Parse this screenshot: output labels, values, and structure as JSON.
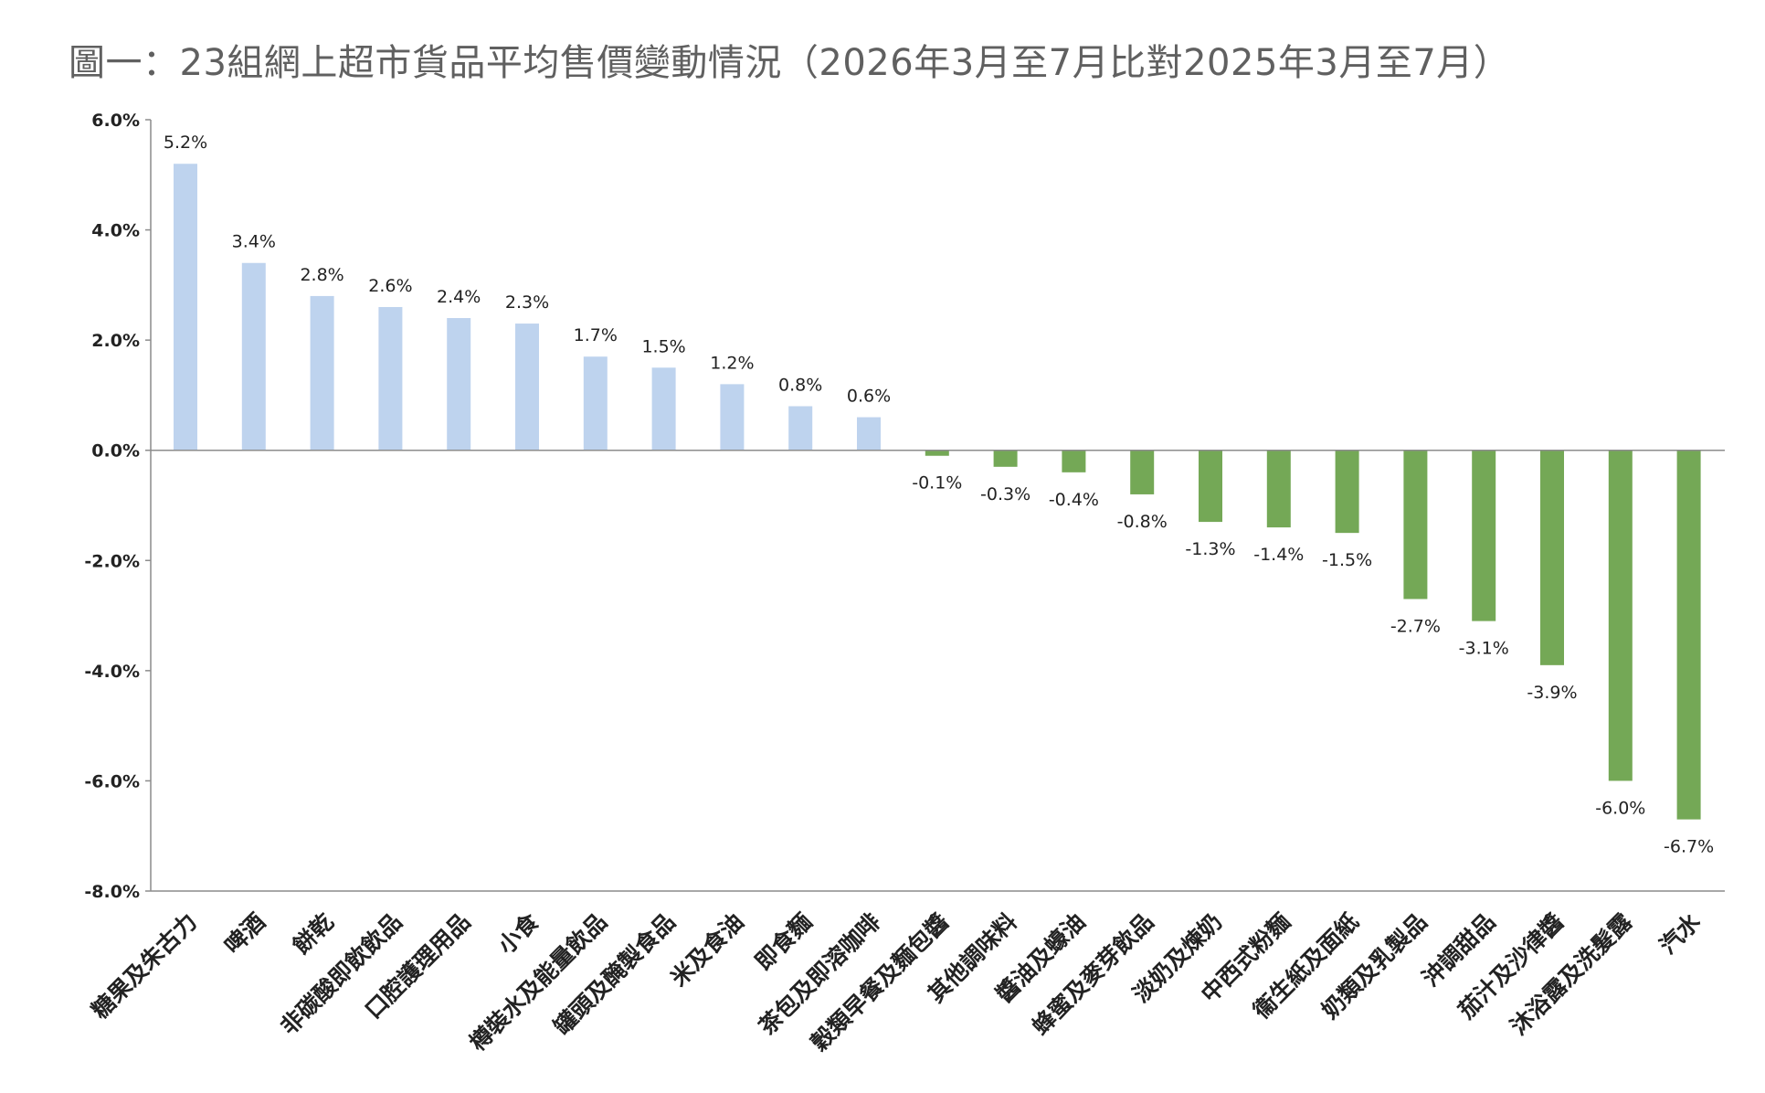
{
  "title": "圖一：23組網上超市貨品平均售價變動情況（2026年3月至7月比對2025年3月至7月）",
  "colors": {
    "positive": "#bed3ee",
    "negative": "#74a856",
    "axis": "#8c8c8c"
  },
  "chart_data": {
    "type": "bar",
    "title": "圖一：23組網上超市貨品平均售價變動情況（2026年3月至7月比對2025年3月至7月）",
    "xlabel": "",
    "ylabel": "",
    "ylim": [
      -8.0,
      6.0
    ],
    "yticks": [
      "6.0%",
      "4.0%",
      "2.0%",
      "0.0%",
      "-2.0%",
      "-4.0%",
      "-6.0%",
      "-8.0%"
    ],
    "ytick_values": [
      6,
      4,
      2,
      0,
      -2,
      -4,
      -6,
      -8
    ],
    "grid": false,
    "legend": "none",
    "categories": [
      "糖果及朱古力",
      "啤酒",
      "餅乾",
      "非碳酸即飲飲品",
      "口腔護理用品",
      "小食",
      "樽裝水及能量飲品",
      "罐頭及醃製食品",
      "米及食油",
      "即食麵",
      "茶包及即溶咖啡",
      "穀類早餐及麵包醬",
      "其他調味料",
      "醬油及蠔油",
      "蜂蜜及麥芽飲品",
      "淡奶及煉奶",
      "中西式粉麵",
      "衞生紙及面紙",
      "奶類及乳製品",
      "沖調甜品",
      "茄汁及沙律醬",
      "沐浴露及洗髮露",
      "汽水"
    ],
    "values": [
      5.2,
      3.4,
      2.8,
      2.6,
      2.4,
      2.3,
      1.7,
      1.5,
      1.2,
      0.8,
      0.6,
      -0.1,
      -0.3,
      -0.4,
      -0.8,
      -1.3,
      -1.4,
      -1.5,
      -2.7,
      -3.1,
      -3.9,
      -6.0,
      -6.7
    ],
    "value_labels": [
      "5.2%",
      "3.4%",
      "2.8%",
      "2.6%",
      "2.4%",
      "2.3%",
      "1.7%",
      "1.5%",
      "1.2%",
      "0.8%",
      "0.6%",
      "-0.1%",
      "-0.3%",
      "-0.4%",
      "-0.8%",
      "-1.3%",
      "-1.4%",
      "-1.5%",
      "-2.7%",
      "-3.1%",
      "-3.9%",
      "-6.0%",
      "-6.7%"
    ]
  }
}
